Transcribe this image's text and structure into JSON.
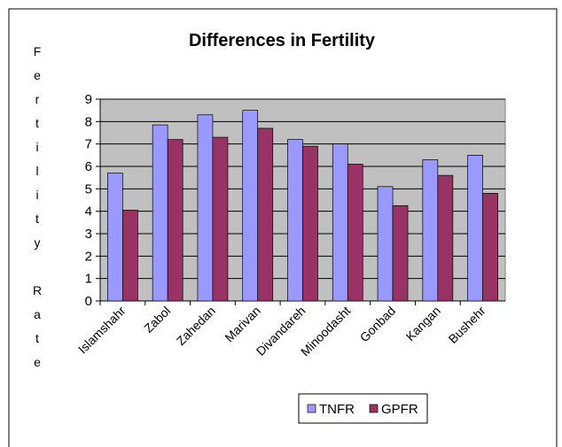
{
  "chart_data": {
    "type": "bar",
    "title": "Differences in Fertility",
    "y_label": "Fertility Rate",
    "categories": [
      "Islamshahr",
      "Zabol",
      "Zahedan",
      "Marivan",
      "Divandareh",
      "Minoodasht",
      "Gonbad",
      "Kangan",
      "Bushehr"
    ],
    "series": [
      {
        "name": "TNFR",
        "color": "#9999ff",
        "values": [
          5.7,
          7.85,
          8.3,
          8.5,
          7.2,
          7.0,
          5.1,
          6.3,
          6.5
        ]
      },
      {
        "name": "GPFR",
        "color": "#993366",
        "values": [
          4.05,
          7.2,
          7.3,
          7.7,
          6.9,
          6.1,
          4.25,
          5.6,
          4.8
        ]
      }
    ],
    "ylim": [
      0,
      9
    ],
    "yticks": [
      0,
      1,
      2,
      3,
      4,
      5,
      6,
      7,
      8,
      9
    ],
    "grid": true,
    "plot_background": "#c0c0c0",
    "legend": "bottom"
  }
}
